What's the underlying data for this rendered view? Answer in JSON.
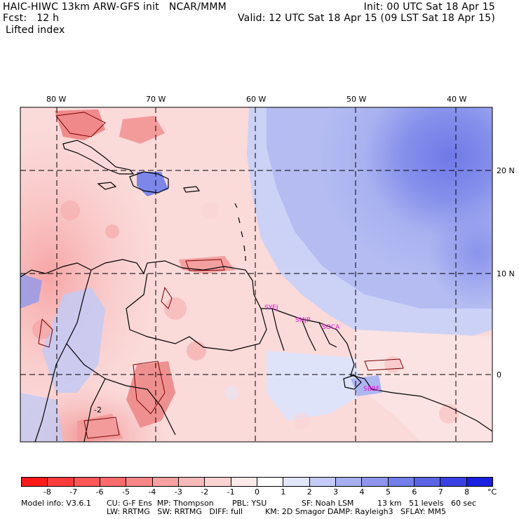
{
  "header": {
    "title_left": "HAIC-HIWC 13km ARW-GFS init   NCAR/MMM",
    "forecast": "Fcst:   12 h",
    "field": "Lifted index",
    "init": "Init: 00 UTC Sat 18 Apr 15",
    "valid": "Valid: 12 UTC Sat 18 Apr 15 (09 LST Sat 18 Apr 15)"
  },
  "map": {
    "lon_labels": [
      "80 W",
      "70 W",
      "60 W",
      "50 W",
      "40 W"
    ],
    "lat_labels": [
      "20 N",
      "10 N",
      "0"
    ],
    "stations": [
      "SYEJ",
      "SMJP",
      "SOCA",
      "SBBE"
    ],
    "contour_label": "-2"
  },
  "colorbar": {
    "labels": [
      "-8",
      "-7",
      "-6",
      "-5",
      "-4",
      "-3",
      "-2",
      "-1",
      "0",
      "1",
      "2",
      "3",
      "4",
      "5",
      "6",
      "7",
      "8"
    ],
    "unit": "°C",
    "colors": [
      "#ff1a1a",
      "#ff3c3c",
      "#ff5757",
      "#fb6b6b",
      "#f88686",
      "#f7a1a1",
      "#f8b9b9",
      "#fbd3d3",
      "#fde9e9",
      "#ffffff",
      "#e2e6fb",
      "#c4cbf6",
      "#a5afef",
      "#8d96ec",
      "#737ee9",
      "#5a64e5",
      "#3a41e2",
      "#1a20e0"
    ]
  },
  "footer": {
    "line1_a": "Model info: V3.6.1",
    "line1_b": "CU: G-F Ens  MP: Thompson",
    "line1_c": "PBL: YSU",
    "line1_d": "SF: Noah LSM",
    "line1_e": "13 km   51 levels   60 sec",
    "line2_a": "LW: RRTMG   SW: RRTMG   DIFF: full",
    "line2_b": "KM: 2D Smagor DAMP: Rayleigh3   SFLAY: MM5"
  }
}
